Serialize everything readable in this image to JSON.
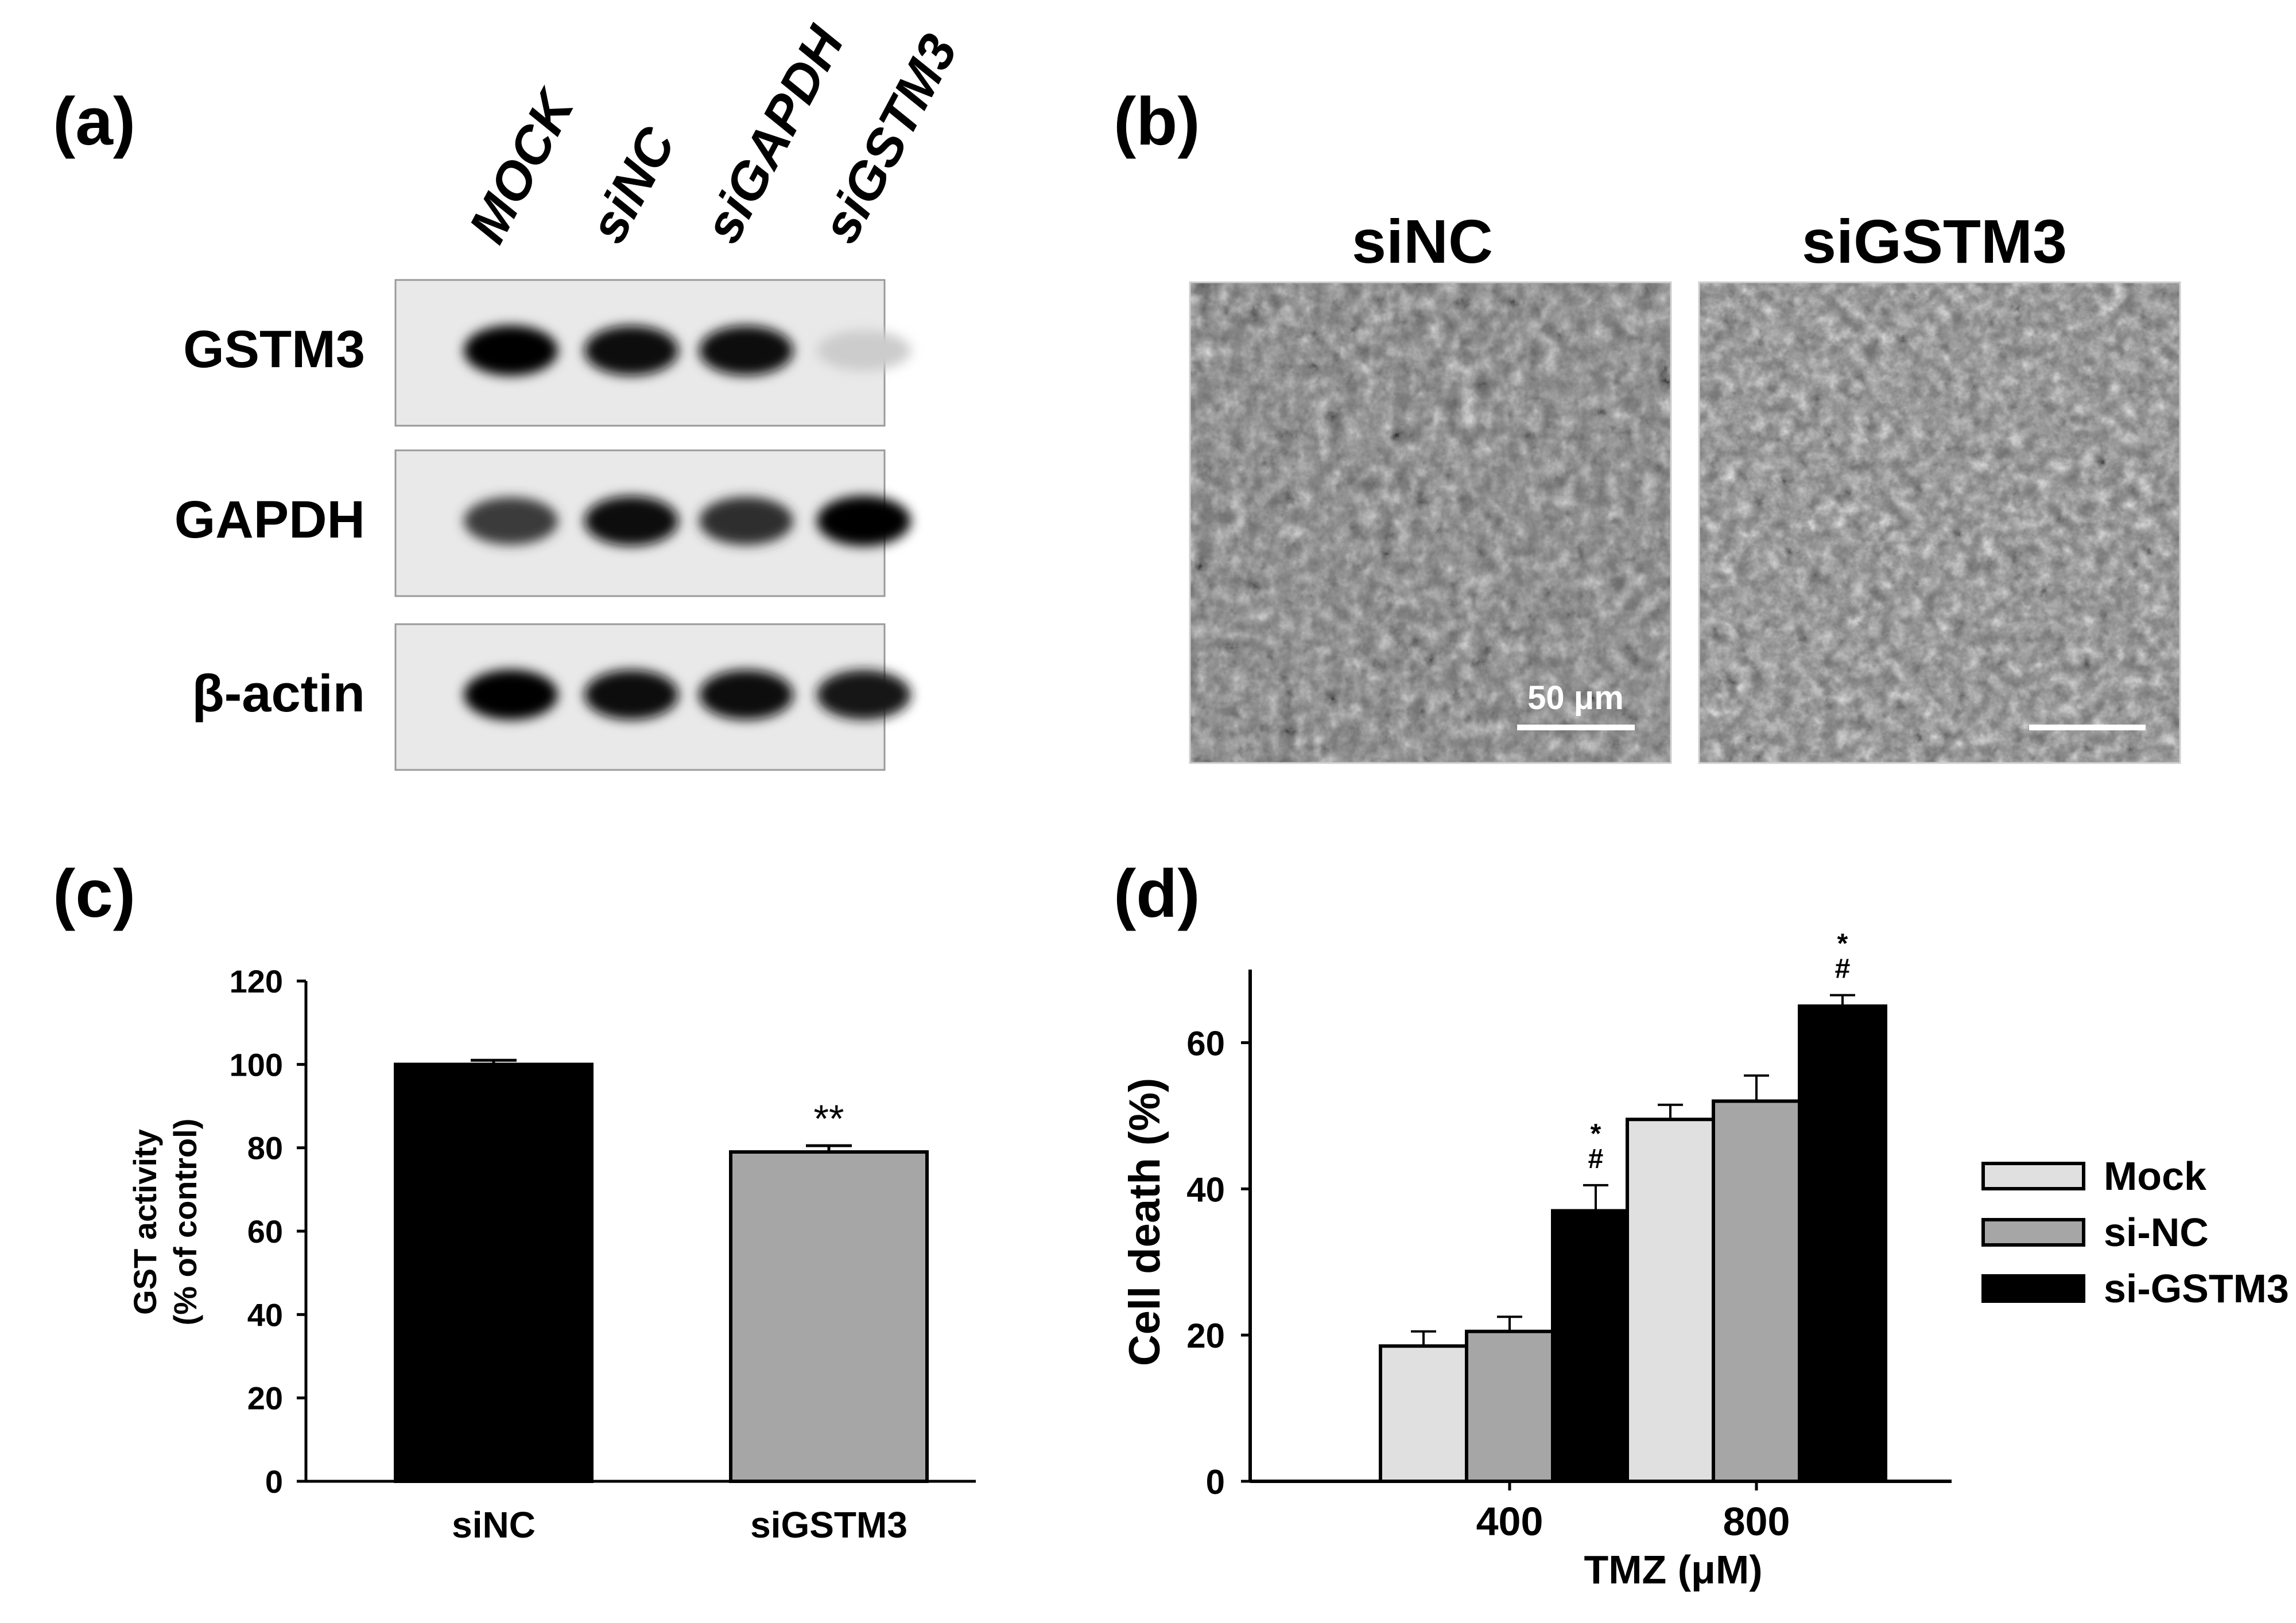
{
  "panels": {
    "a": {
      "letter": "(a)"
    },
    "b": {
      "letter": "(b)"
    },
    "c": {
      "letter": "(c)"
    },
    "d": {
      "letter": "(d)"
    }
  },
  "western_blot": {
    "lanes": [
      "MOCK",
      "siNC",
      "siGAPDH",
      "siGSTM3"
    ],
    "rows": [
      {
        "label": "GSTM3",
        "intensities": [
          1.0,
          0.95,
          0.95,
          0.12
        ]
      },
      {
        "label": "GAPDH",
        "intensities": [
          0.75,
          0.95,
          0.8,
          1.0
        ]
      },
      {
        "label": "β-actin",
        "intensities": [
          1.0,
          0.95,
          0.95,
          0.92
        ]
      }
    ]
  },
  "micrographs": {
    "left_label": "siNC",
    "right_label": "siGSTM3",
    "scale_bar_label": "50 μm"
  },
  "chart_data": [
    {
      "type": "bar",
      "categories": [
        "siNC",
        "siGSTM3"
      ],
      "values": [
        100,
        79
      ],
      "errors": [
        1,
        1.5
      ],
      "colors": [
        "#000000",
        "#a6a6a6"
      ],
      "annotations": [
        "",
        "**"
      ],
      "title": "",
      "xlabel": "",
      "ylabel": "GST activity",
      "ylabel_line2": "(% of control)",
      "ylim": [
        0,
        120
      ],
      "yticks": [
        0,
        20,
        40,
        60,
        80,
        100,
        120
      ]
    },
    {
      "type": "bar",
      "categories": [
        "400",
        "800"
      ],
      "series": [
        {
          "name": "Mock",
          "color": "#e0e0e0",
          "values": [
            18.5,
            49.5
          ],
          "errors": [
            2,
            2
          ],
          "annotations": [
            "",
            ""
          ]
        },
        {
          "name": "si-NC",
          "color": "#a6a6a6",
          "values": [
            20.5,
            52
          ],
          "errors": [
            2,
            3.5
          ],
          "annotations": [
            "",
            ""
          ]
        },
        {
          "name": "si-GSTM3",
          "color": "#000000",
          "values": [
            37,
            65
          ],
          "errors": [
            3.5,
            1.5
          ],
          "annotations": [
            "*\n#",
            "*\n#"
          ]
        }
      ],
      "title": "",
      "xlabel": "TMZ (μM)",
      "ylabel": "Cell death (%)",
      "ylim": [
        0,
        70
      ],
      "yticks": [
        0,
        20,
        40,
        60
      ],
      "legend": "right"
    }
  ]
}
